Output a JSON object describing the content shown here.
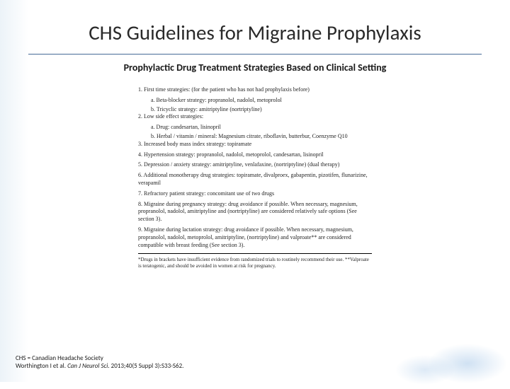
{
  "title": "CHS Guidelines for Migraine Prophylaxis",
  "subtitle": "Prophylactic Drug Treatment Strategies Based on Clinical Setting",
  "figure": {
    "items": [
      {
        "n": "1.",
        "text": "First time strategies: (for the patient who has not had prophylaxis before)",
        "subs": [
          {
            "l": "a.",
            "t": "Beta-blocker strategy: propranolol, nadolol, metoprolol"
          },
          {
            "l": "b.",
            "t": "Tricyclic strategy: amitriptyline (nortriptyline)"
          }
        ]
      },
      {
        "n": "2.",
        "text": "Low side effect strategies:",
        "subs": [
          {
            "l": "a.",
            "t": "Drug: candesartan, lisinopril"
          },
          {
            "l": "b.",
            "t": "Herbal / vitamin / mineral: Magnesium citrate, riboflavin, butterbur, Coenzyme Q10"
          }
        ]
      },
      {
        "n": "3.",
        "text": "Increased body mass index strategy: topiramate"
      },
      {
        "n": "4.",
        "text": "Hypertension strategy: propranolol, nadolol, metoprolol, candesartan, lisinopril"
      },
      {
        "n": "5.",
        "text": "Depression / anxiety strategy: amitriptyline, venlafaxine, (nortriptyline) (dual therapy)"
      },
      {
        "n": "6.",
        "text": "Additional monotherapy drug strategies: topiramate, divalproex, gabapentin, pizotifen, flunarizine, verapamil"
      },
      {
        "n": "7.",
        "text": "Refractory patient strategy: concomitant use of two drugs"
      },
      {
        "n": "8.",
        "text": "Migraine during pregnancy strategy: drug avoidance if possible. When necessary, magnesium, propranolol, nadolol, amitriptyline and (nortriptyline) are considered relatively safe options (See section 3)."
      },
      {
        "n": "9.",
        "text": "Migraine during lactation strategy: drug avoidance if possible. When necessary, magnesium, propranolol, nadolol, metoprolol, amitriptyline, (nortriptyline) and valproate** are considered compatible with breast feeding (See section 3)."
      }
    ],
    "note": "*Drugs in brackets have insufficient evidence from randomized trials to routinely recommend their use. **Valproate is teratogenic, and should be avoided in women at risk for pregnancy."
  },
  "footer": {
    "abbrev": "CHS = Canadian Headache Society",
    "citation_prefix": "Worthington I et al. ",
    "journal": "Can J Neurol Sci.",
    "citation_suffix": " 2013;40(5 Suppl 3):S33-S62."
  },
  "styles": {
    "title_color": "#2a2a2a",
    "rule_color": "#5b7da3",
    "figure_font": "serif",
    "background": "#ffffff"
  }
}
